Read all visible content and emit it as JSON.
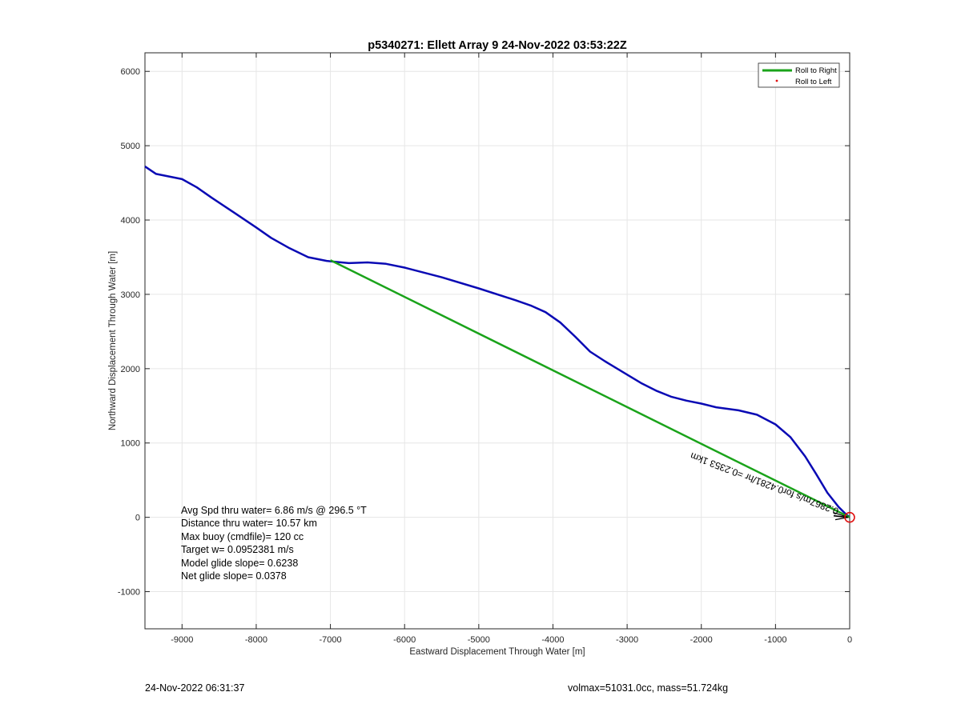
{
  "chart_data": {
    "type": "line",
    "title": "p5340271: Ellett Array 9 24-Nov-2022 03:53:22Z",
    "xlabel": "Eastward Displacement Through Water [m]",
    "ylabel": "Northward Displacement Through Water [m]",
    "xlim": [
      -9500,
      0
    ],
    "ylim": [
      -1500,
      6250
    ],
    "xticks": [
      -9000,
      -8000,
      -7000,
      -6000,
      -5000,
      -4000,
      -3000,
      -2000,
      -1000,
      0
    ],
    "yticks": [
      -1000,
      0,
      1000,
      2000,
      3000,
      4000,
      5000,
      6000
    ],
    "grid": true,
    "legend_position": "top-right",
    "legend": [
      {
        "label": "Roll to Right",
        "color": "#1aa31a",
        "style": "line"
      },
      {
        "label": "Roll to Left",
        "color": "#e01010",
        "style": "dot"
      }
    ],
    "series": [
      {
        "color": "#0a0ab4",
        "x": [
          -9500,
          -9350,
          -9000,
          -8800,
          -8600,
          -8300,
          -8000,
          -7800,
          -7550,
          -7300,
          -7050,
          -6950,
          -6750,
          -6500,
          -6250,
          -6000,
          -5500,
          -5000,
          -4500,
          -4300,
          -4100,
          -3900,
          -3700,
          -3500,
          -3300,
          -3000,
          -2800,
          -2600,
          -2400,
          -2200,
          -2000,
          -1800,
          -1500,
          -1250,
          -1000,
          -800,
          -600,
          -450,
          -300,
          -150,
          -50,
          0
        ],
        "y": [
          4720,
          4620,
          4550,
          4440,
          4300,
          4100,
          3900,
          3760,
          3620,
          3500,
          3450,
          3440,
          3420,
          3430,
          3410,
          3360,
          3230,
          3080,
          2920,
          2850,
          2760,
          2620,
          2430,
          2230,
          2100,
          1920,
          1800,
          1700,
          1620,
          1570,
          1530,
          1480,
          1440,
          1380,
          1250,
          1080,
          820,
          580,
          330,
          140,
          40,
          0
        ]
      },
      {
        "name": "Roll to Right",
        "color": "#1aa31a",
        "x": [
          -7000,
          0
        ],
        "y": [
          3460,
          0
        ]
      }
    ],
    "end_marker": {
      "x": 0,
      "y": 0,
      "color": "#e01010"
    },
    "rotated_label": "0.2867m/s for0.4281/hr =0.2353 1km",
    "annotations": [
      "Avg Spd thru water=  6.86 m/s @ 296.5 °T",
      "Distance thru water= 10.57 km",
      "Max buoy (cmdfile)= 120 cc",
      "Target w= 0.0952381 m/s",
      "Model glide slope= 0.6238",
      "Net glide slope= 0.0378"
    ]
  },
  "footer": {
    "left": "24-Nov-2022 06:31:37",
    "right": "volmax=51031.0cc, mass=51.724kg"
  }
}
